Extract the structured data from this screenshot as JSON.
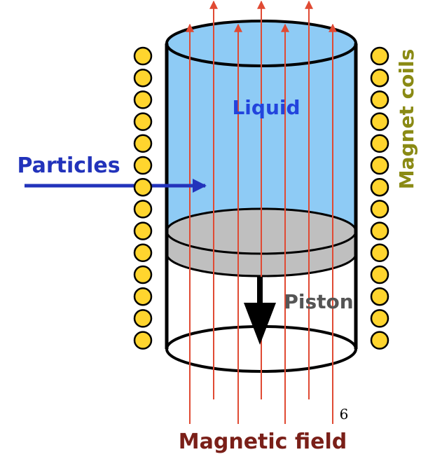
{
  "labels": {
    "liquid": "Liquid",
    "particles": "Particles",
    "magnet_coils": "Magnet coils",
    "piston": "Piston",
    "magnetic_field": "Magnetic field",
    "page_number": "6"
  },
  "colors": {
    "liquid_fill": "#8ecbf5",
    "liquid_text": "#2244dd",
    "particles": "#2233bb",
    "coil_fill": "#ffd52e",
    "coil_label": "#8a8a14",
    "piston_fill": "#bfbfbf",
    "piston_text": "#555555",
    "field_lines": "#e04a33",
    "field_label": "#7a1f18",
    "outline": "#000000"
  },
  "coils": {
    "per_side": 14
  },
  "field_lines": {
    "count": 7
  }
}
